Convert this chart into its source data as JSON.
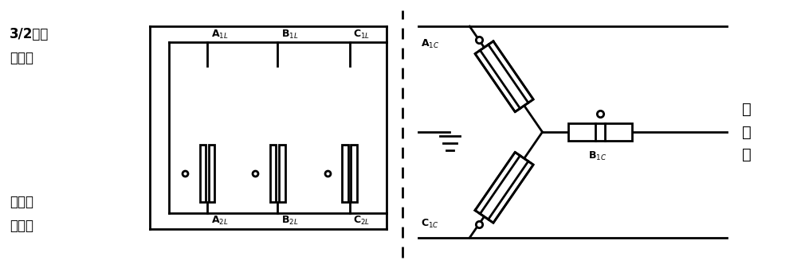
{
  "bg_color": "#ffffff",
  "line_color": "#000000",
  "lw": 2.0,
  "fig_width": 10.0,
  "fig_height": 3.37,
  "dpi": 100,
  "label_A1L": "A$_{1L}$",
  "label_A2L": "A$_{2L}$",
  "label_B1L": "B$_{1L}$",
  "label_B2L": "B$_{2L}$",
  "label_C1L": "C$_{1L}$",
  "label_C2L": "C$_{2L}$",
  "label_A1C": "A$_{1C}$",
  "label_B1C": "B$_{1C}$",
  "label_C1C": "C$_{1C}$",
  "top_label_1": "3/2断路",
  "top_label_2": "器支路",
  "bot_label_1": "多断路",
  "bot_label_2": "器支路",
  "right_label_1": "换",
  "right_label_2": "流",
  "right_label_3": "器"
}
